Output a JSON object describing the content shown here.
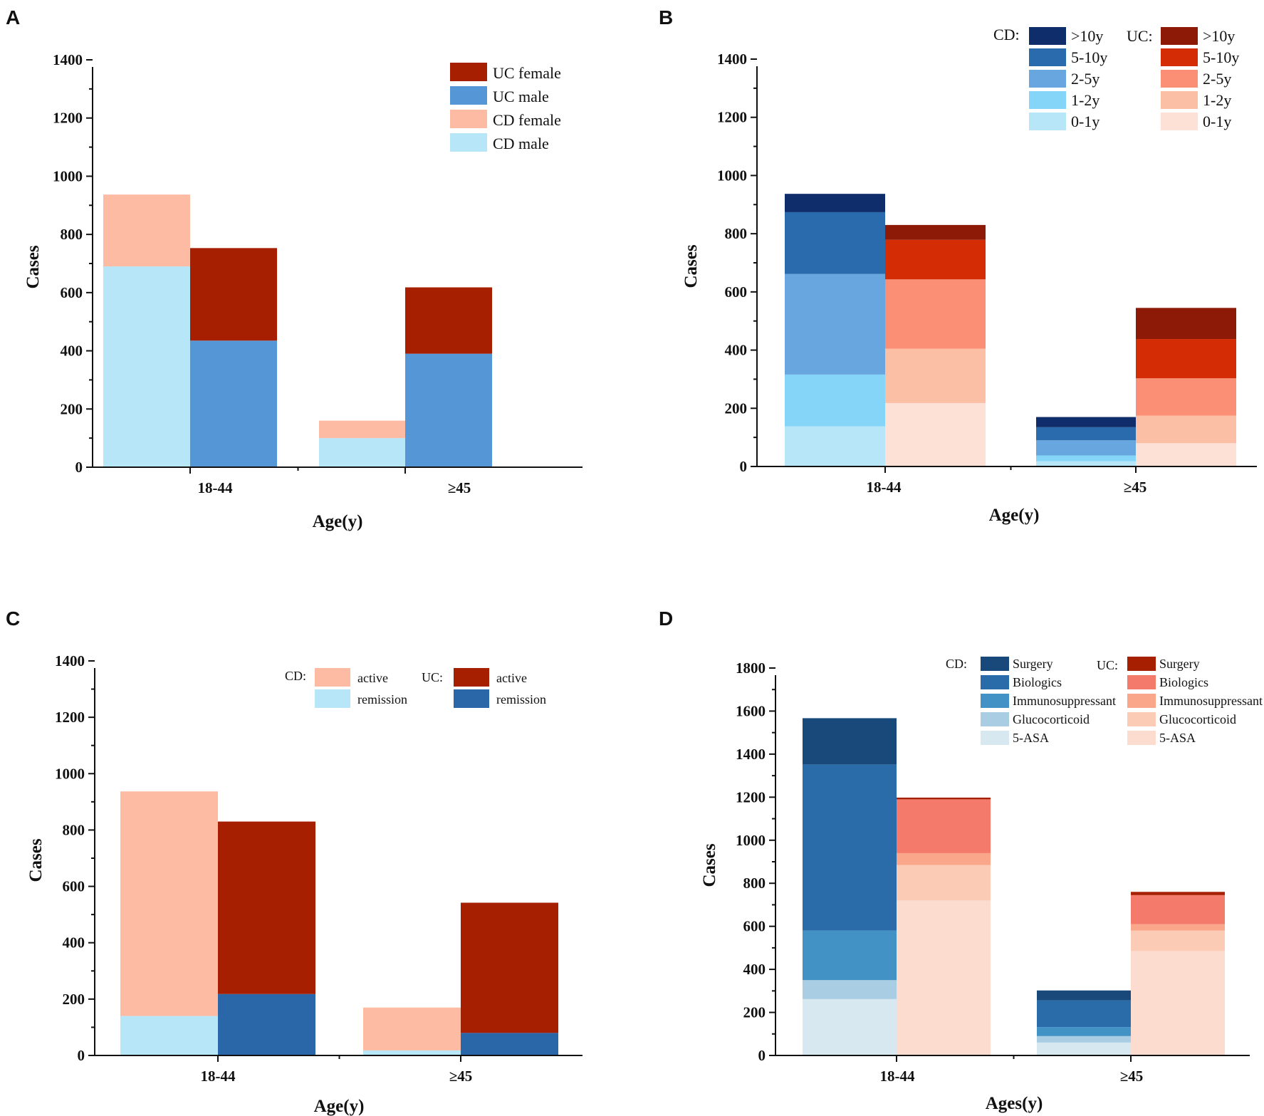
{
  "colors": {
    "cd_male": "#b7e6f9",
    "cd_female": "#fdbba4",
    "uc_male": "#5596d6",
    "uc_female": "#a51f00",
    "cd_0_1y": "#b7e6f9",
    "cd_1_2y": "#85d5f9",
    "cd_2_5y": "#67a6df",
    "cd_5_10y": "#2a6bad",
    "cd_gt10y": "#0f2d6a",
    "uc_0_1y": "#fde0d6",
    "uc_1_2y": "#fbbfa6",
    "uc_2_5y": "#fb8f76",
    "uc_5_10y": "#d42c04",
    "uc_gt10y": "#8c1a06",
    "cd_active": "#fdbba4",
    "cd_remission": "#b7e6f9",
    "uc_active": "#a51f00",
    "uc_remission": "#2967a8",
    "cd_5asa": "#d7e8f1",
    "cd_gluco": "#a9cde3",
    "cd_immuno": "#4292c6",
    "cd_bio": "#2a6baa",
    "cd_surgery": "#18497a",
    "uc_5asa": "#fddcd0",
    "uc_gluco": "#fccbb5",
    "uc_immuno": "#f9a68a",
    "uc_bio": "#f47a6c",
    "uc_surgery": "#a51f00"
  },
  "chart_data": [
    {
      "panel": "A",
      "type": "bar",
      "stacked": true,
      "categories": [
        "18-44",
        "≥45"
      ],
      "ylim": [
        0,
        1400
      ],
      "yticks": [
        0,
        200,
        400,
        600,
        800,
        1000,
        1200,
        1400
      ],
      "xlabel": "Age(y)",
      "ylabel": "Cases",
      "groups": [
        {
          "name": "CD",
          "series": [
            {
              "name": "CD male",
              "values": [
                690,
                100
              ]
            },
            {
              "name": "CD female",
              "values": [
                247,
                60
              ]
            }
          ]
        },
        {
          "name": "UC",
          "series": [
            {
              "name": "UC male",
              "values": [
                435,
                390
              ]
            },
            {
              "name": "UC female",
              "values": [
                318,
                228
              ]
            }
          ]
        }
      ],
      "legend": [
        "UC female",
        "UC male",
        "CD female",
        "CD male"
      ]
    },
    {
      "panel": "B",
      "type": "bar",
      "stacked": true,
      "categories": [
        "18-44",
        "≥45"
      ],
      "ylim": [
        0,
        1400
      ],
      "yticks": [
        0,
        200,
        400,
        600,
        800,
        1000,
        1200,
        1400
      ],
      "xlabel": "Age(y)",
      "ylabel": "Cases",
      "groups": [
        {
          "name": "CD",
          "series": [
            {
              "name": "0-1y",
              "values": [
                138,
                18
              ]
            },
            {
              "name": "1-2y",
              "values": [
                178,
                20
              ]
            },
            {
              "name": "2-5y",
              "values": [
                346,
                52
              ]
            },
            {
              "name": "5-10y",
              "values": [
                212,
                45
              ]
            },
            {
              "name": ">10y",
              "values": [
                63,
                35
              ]
            }
          ]
        },
        {
          "name": "UC",
          "series": [
            {
              "name": "0-1y",
              "values": [
                218,
                80
              ]
            },
            {
              "name": "1-2y",
              "values": [
                187,
                95
              ]
            },
            {
              "name": "2-5y",
              "values": [
                238,
                128
              ]
            },
            {
              "name": "5-10y",
              "values": [
                136,
                135
              ]
            },
            {
              "name": ">10y",
              "values": [
                51,
                107
              ]
            }
          ]
        }
      ],
      "legend_cd_title": "CD:",
      "legend_uc_title": "UC:",
      "legend_labels": [
        ">10y",
        "5-10y",
        "2-5y",
        "1-2y",
        "0-1y"
      ]
    },
    {
      "panel": "C",
      "type": "bar",
      "stacked": true,
      "categories": [
        "18-44",
        "≥45"
      ],
      "ylim": [
        0,
        1400
      ],
      "yticks": [
        0,
        200,
        400,
        600,
        800,
        1000,
        1200,
        1400
      ],
      "xlabel": "Age(y)",
      "ylabel": "Cases",
      "groups": [
        {
          "name": "CD",
          "series": [
            {
              "name": "remission",
              "values": [
                140,
                18
              ]
            },
            {
              "name": "active",
              "values": [
                797,
                152
              ]
            }
          ]
        },
        {
          "name": "UC",
          "series": [
            {
              "name": "remission",
              "values": [
                218,
                80
              ]
            },
            {
              "name": "active",
              "values": [
                612,
                462
              ]
            }
          ]
        }
      ],
      "legend_cd_title": "CD:",
      "legend_uc_title": "UC:",
      "legend_labels": [
        "active",
        "remission"
      ]
    },
    {
      "panel": "D",
      "type": "bar",
      "stacked": true,
      "categories": [
        "18-44",
        "≥45"
      ],
      "ylim": [
        0,
        1800
      ],
      "yticks": [
        0,
        200,
        400,
        600,
        800,
        1000,
        1200,
        1400,
        1600,
        1800
      ],
      "xlabel": "Ages(y)",
      "ylabel": "Cases",
      "groups": [
        {
          "name": "CD",
          "series": [
            {
              "name": "5-ASA",
              "values": [
                262,
                60
              ]
            },
            {
              "name": "Glucocorticoid",
              "values": [
                88,
                30
              ]
            },
            {
              "name": "Immunosuppressant",
              "values": [
                230,
                42
              ]
            },
            {
              "name": "Biologics",
              "values": [
                772,
                124
              ]
            },
            {
              "name": "Surgery",
              "values": [
                215,
                46
              ]
            }
          ]
        },
        {
          "name": "UC",
          "series": [
            {
              "name": "5-ASA",
              "values": [
                720,
                485
              ]
            },
            {
              "name": "Glucocorticoid",
              "values": [
                165,
                95
              ]
            },
            {
              "name": "Immunosuppressant",
              "values": [
                55,
                30
              ]
            },
            {
              "name": "Biologics",
              "values": [
                250,
                135
              ]
            },
            {
              "name": "Surgery",
              "values": [
                8,
                15
              ]
            }
          ]
        }
      ],
      "legend_cd_title": "CD:",
      "legend_uc_title": "UC:",
      "legend_labels": [
        "Surgery",
        "Biologics",
        "Immunosuppressant",
        "Glucocorticoid",
        "5-ASA"
      ]
    }
  ]
}
